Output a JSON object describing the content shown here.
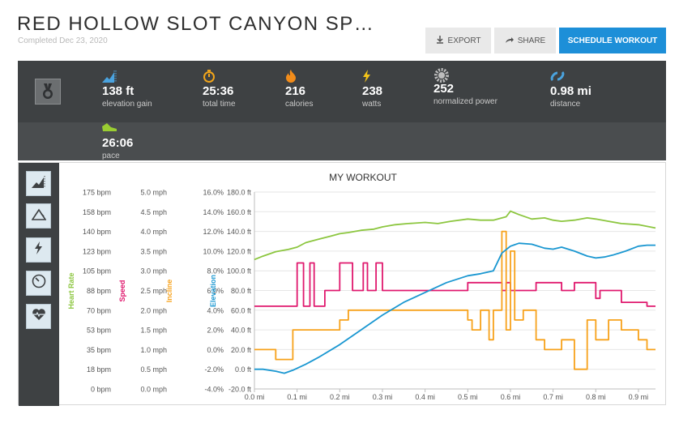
{
  "header": {
    "title": "RED HOLLOW SLOT CANYON SP…",
    "subtitle": "Completed Dec 23, 2020"
  },
  "toolbar": {
    "export_label": "EXPORT",
    "share_label": "SHARE",
    "schedule_label": "SCHEDULE WORKOUT"
  },
  "stats": [
    {
      "icon": "elevation-icon",
      "value": "138 ft",
      "label": "elevation gain",
      "color": "#4aa3df"
    },
    {
      "icon": "stopwatch-icon",
      "value": "25:36",
      "label": "total time",
      "color": "#f2a51a"
    },
    {
      "icon": "flame-icon",
      "value": "216",
      "label": "calories",
      "color": "#f28c1a"
    },
    {
      "icon": "lightning-icon",
      "value": "238",
      "label": "watts",
      "color": "#f5c518"
    },
    {
      "icon": "gear-icon",
      "value": "252",
      "label": "normalized power",
      "color": "#bdbdbd"
    },
    {
      "icon": "distance-icon",
      "value": "0.98 mi",
      "label": "distance",
      "color": "#4aa3df"
    },
    {
      "icon": "shoe-icon",
      "value": "26:06",
      "label": "pace",
      "color": "#9acd32"
    }
  ],
  "sidebar": {
    "buttons": [
      "elevation-chart-icon",
      "incline-icon",
      "power-icon",
      "speedometer-icon",
      "heart-rate-icon"
    ]
  },
  "chart_data": {
    "type": "line",
    "title": "MY WORKOUT",
    "xlabel": "",
    "x_ticks": [
      "0.0 mi",
      "0.1 mi",
      "0.2 mi",
      "0.3 mi",
      "0.4 mi",
      "0.5 mi",
      "0.6 mi",
      "0.7 mi",
      "0.8 mi",
      "0.9 mi"
    ],
    "xlim": [
      0,
      0.94
    ],
    "grid": true,
    "axes": [
      {
        "name": "Heart Rate",
        "color": "#8cc63f",
        "ticks": [
          "0 bpm",
          "18 bpm",
          "35 bpm",
          "53 bpm",
          "70 bpm",
          "88 bpm",
          "105 bpm",
          "123 bpm",
          "140 bpm",
          "158 bpm",
          "175 bpm"
        ]
      },
      {
        "name": "Speed",
        "color": "#e0196e",
        "ticks": [
          "0.0 mph",
          "0.5 mph",
          "1.0 mph",
          "1.5 mph",
          "2.0 mph",
          "2.5 mph",
          "3.0 mph",
          "3.5 mph",
          "4.0 mph",
          "4.5 mph",
          "5.0 mph"
        ]
      },
      {
        "name": "Incline",
        "color": "#f7a21b",
        "ticks": [
          "-4.0%",
          "-2.0%",
          "0.0%",
          "2.0%",
          "4.0%",
          "6.0%",
          "8.0%",
          "10.0%",
          "12.0%",
          "14.0%",
          "16.0%"
        ]
      },
      {
        "name": "Elevation",
        "color": "#1a97d1",
        "ticks": [
          "-20.0 ft",
          "0.0 ft",
          "20.0 ft",
          "40.0 ft",
          "60.0 ft",
          "80.0 ft",
          "100.0 ft",
          "120.0 ft",
          "140.0 ft",
          "160.0 ft",
          "180.0 ft"
        ]
      }
    ],
    "series": [
      {
        "name": "Heart Rate",
        "unit": "bpm",
        "ylim": [
          0,
          175
        ],
        "color": "#8cc63f",
        "x": [
          0,
          0.02,
          0.05,
          0.08,
          0.1,
          0.12,
          0.15,
          0.18,
          0.2,
          0.22,
          0.25,
          0.28,
          0.3,
          0.33,
          0.36,
          0.4,
          0.43,
          0.46,
          0.5,
          0.53,
          0.56,
          0.59,
          0.6,
          0.62,
          0.65,
          0.68,
          0.7,
          0.72,
          0.75,
          0.78,
          0.8,
          0.83,
          0.86,
          0.9,
          0.94
        ],
        "y": [
          115,
          118,
          122,
          124,
          126,
          130,
          133,
          136,
          138,
          139,
          141,
          142,
          144,
          146,
          147,
          148,
          147,
          149,
          151,
          150,
          150,
          153,
          158,
          155,
          151,
          152,
          150,
          149,
          150,
          152,
          151,
          149,
          147,
          146,
          143
        ]
      },
      {
        "name": "Speed",
        "unit": "mph",
        "ylim": [
          0,
          5
        ],
        "x": [
          0,
          0.012,
          0.012,
          0.1,
          0.1,
          0.115,
          0.115,
          0.13,
          0.13,
          0.14,
          0.14,
          0.165,
          0.165,
          0.2,
          0.2,
          0.23,
          0.23,
          0.255,
          0.255,
          0.265,
          0.265,
          0.285,
          0.285,
          0.3,
          0.3,
          0.5,
          0.5,
          0.58,
          0.58,
          0.59,
          0.59,
          0.6,
          0.6,
          0.66,
          0.66,
          0.72,
          0.72,
          0.75,
          0.75,
          0.8,
          0.8,
          0.81,
          0.81,
          0.86,
          0.86,
          0.92,
          0.92,
          0.94
        ],
        "y": [
          2.1,
          2.1,
          2.1,
          2.1,
          3.2,
          3.2,
          2.1,
          2.1,
          3.2,
          3.2,
          2.1,
          2.1,
          2.5,
          2.5,
          3.2,
          3.2,
          2.5,
          2.5,
          3.2,
          3.2,
          2.5,
          2.5,
          3.2,
          3.2,
          2.5,
          2.5,
          2.7,
          2.7,
          2.5,
          2.5,
          2.7,
          2.7,
          2.5,
          2.5,
          2.7,
          2.7,
          2.5,
          2.5,
          2.7,
          2.7,
          2.3,
          2.3,
          2.5,
          2.5,
          2.2,
          2.2,
          2.1,
          2.1
        ]
      },
      {
        "name": "Incline",
        "unit": "%",
        "ylim": [
          -4,
          16
        ],
        "x": [
          0,
          0.012,
          0.012,
          0.05,
          0.05,
          0.055,
          0.055,
          0.09,
          0.09,
          0.11,
          0.11,
          0.2,
          0.2,
          0.22,
          0.22,
          0.25,
          0.25,
          0.32,
          0.32,
          0.5,
          0.5,
          0.51,
          0.51,
          0.53,
          0.53,
          0.55,
          0.55,
          0.56,
          0.56,
          0.58,
          0.58,
          0.59,
          0.59,
          0.6,
          0.6,
          0.61,
          0.61,
          0.63,
          0.63,
          0.66,
          0.66,
          0.68,
          0.68,
          0.72,
          0.72,
          0.75,
          0.75,
          0.78,
          0.78,
          0.8,
          0.8,
          0.83,
          0.83,
          0.86,
          0.86,
          0.9,
          0.9,
          0.92,
          0.92,
          0.94
        ],
        "y": [
          0,
          0,
          0,
          0,
          -1,
          -1,
          -1,
          -1,
          2,
          2,
          2,
          2,
          3,
          3,
          4,
          4,
          4,
          4,
          4,
          4,
          3,
          3,
          2,
          2,
          4,
          4,
          1,
          1,
          4,
          4,
          12,
          12,
          2,
          2,
          10,
          10,
          3,
          3,
          4,
          4,
          1,
          1,
          0,
          0,
          1,
          1,
          -2,
          -2,
          3,
          3,
          1,
          1,
          3,
          3,
          2,
          2,
          1,
          1,
          0,
          0
        ]
      },
      {
        "name": "Elevation",
        "unit": "ft",
        "ylim": [
          -20,
          180
        ],
        "x": [
          0,
          0.02,
          0.05,
          0.07,
          0.09,
          0.12,
          0.15,
          0.2,
          0.25,
          0.3,
          0.35,
          0.4,
          0.45,
          0.5,
          0.53,
          0.56,
          0.58,
          0.6,
          0.62,
          0.65,
          0.68,
          0.7,
          0.72,
          0.75,
          0.78,
          0.8,
          0.82,
          0.84,
          0.87,
          0.9,
          0.92,
          0.94
        ],
        "y": [
          0,
          0,
          -2,
          -4,
          -1,
          5,
          12,
          25,
          40,
          55,
          68,
          78,
          88,
          95,
          97,
          100,
          118,
          125,
          128,
          127,
          123,
          122,
          124,
          120,
          115,
          113,
          114,
          116,
          120,
          125,
          126,
          126
        ]
      }
    ]
  }
}
